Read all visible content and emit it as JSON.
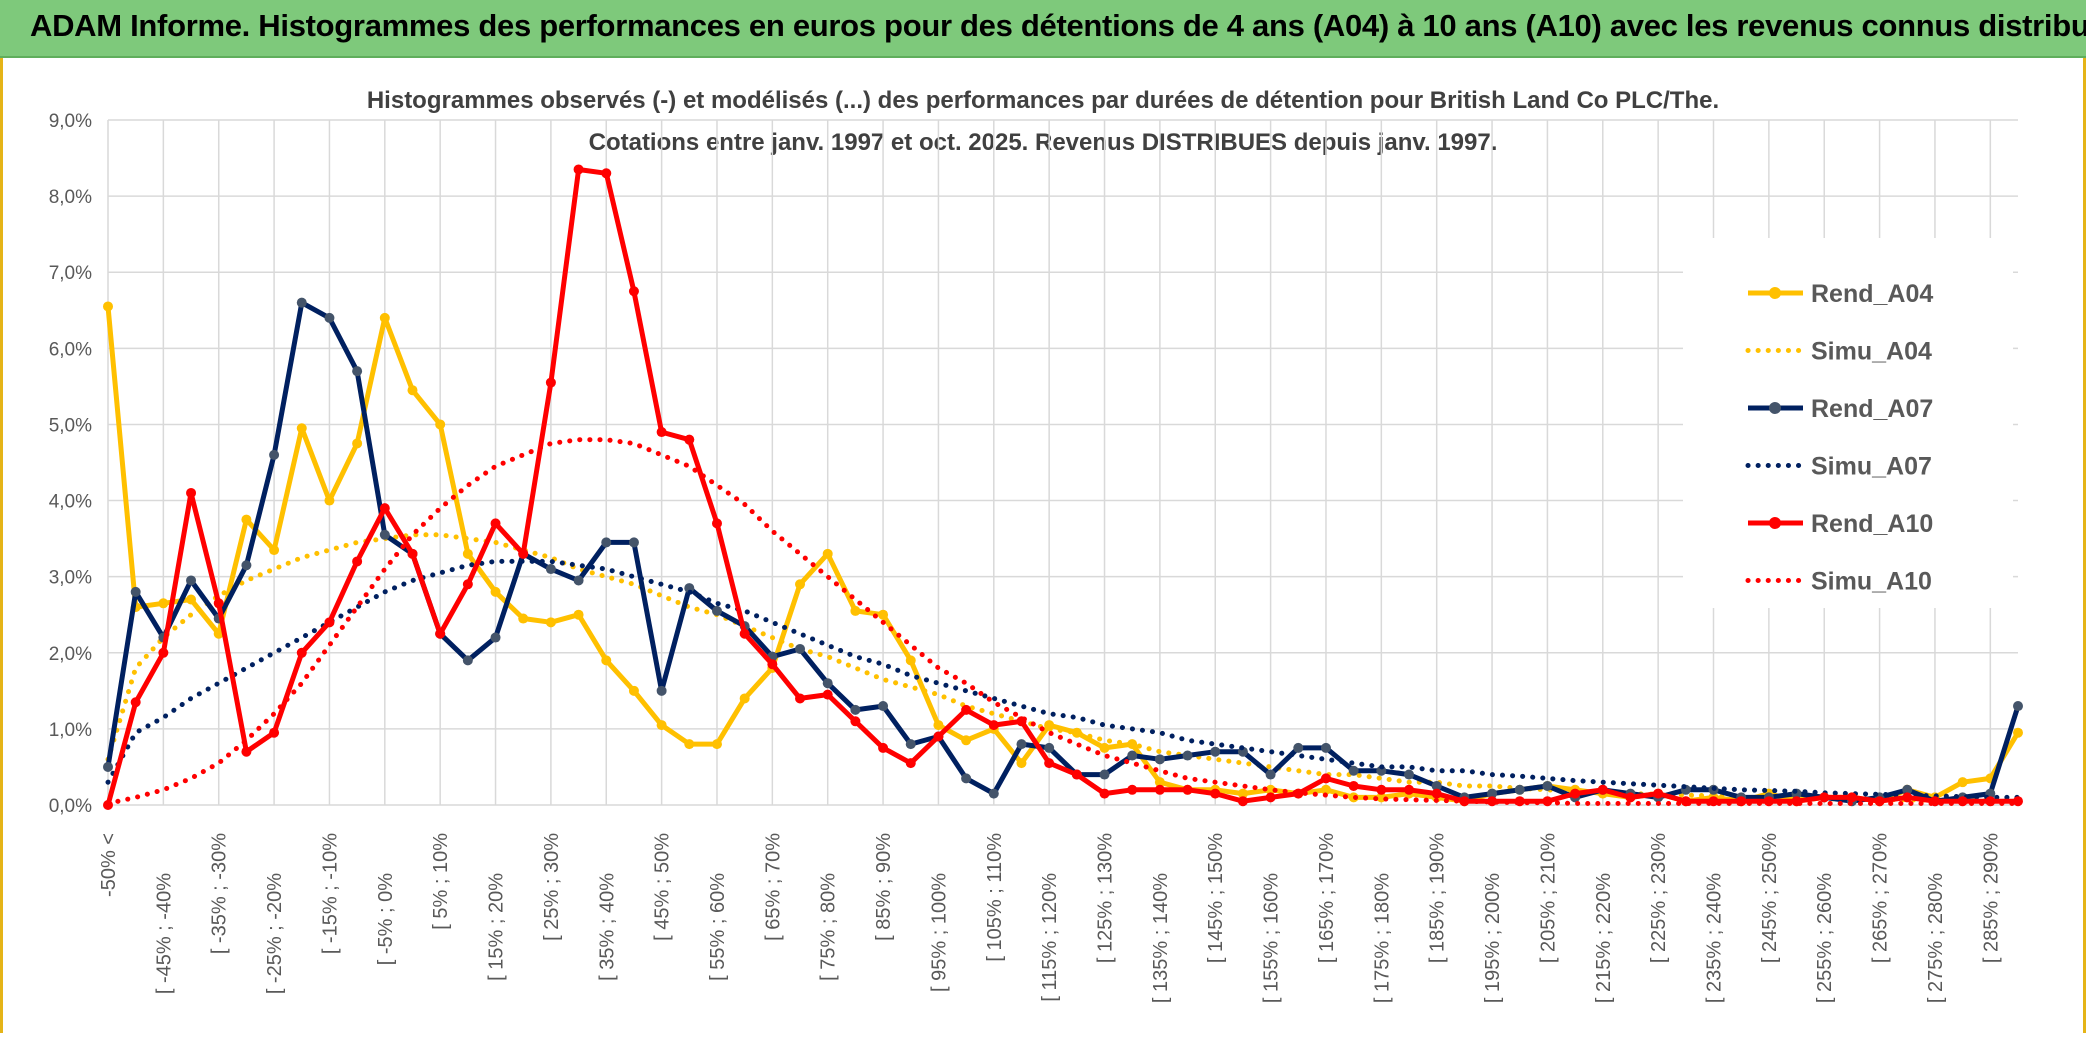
{
  "page_title": "ADAM Informe. Histogrammes des performances en euros pour des détentions de 4 ans (A04) à 10 ans (A10) avec les revenus connus distribués",
  "colors": {
    "header_bg": "#7ec97b",
    "A04": "#ffc000",
    "A07": "#002060",
    "A10": "#ff0000",
    "grid": "#d9d9d9",
    "axis_text": "#595959"
  },
  "chart_data": {
    "type": "line",
    "title_line1": "Histogrammes observés (-) et modélisés (...) des performances par durées de détention pour British Land Co PLC/The.",
    "title_line2": "Cotations entre janv. 1997 et oct. 2025. Revenus DISTRIBUES depuis janv. 1997.",
    "ylim": [
      0,
      9
    ],
    "yticks": [
      "0,0%",
      "1,0%",
      "2,0%",
      "3,0%",
      "4,0%",
      "5,0%",
      "6,0%",
      "7,0%",
      "8,0%",
      "9,0%"
    ],
    "xticks": [
      "-50% <",
      "[ -45% ; -40%",
      "[ -35% ; -30%",
      "[ -25% ; -20%",
      "[ -15% ; -10%",
      "[ -5% ; 0%",
      "[ 5% ; 10%",
      "[ 15% ; 20%",
      "[ 25% ; 30%",
      "[ 35% ; 40%",
      "[ 45% ; 50%",
      "[ 55% ; 60%",
      "[ 65% ; 70%",
      "[ 75% ; 80%",
      "[ 85% ; 90%",
      "[ 95% ; 100%",
      "[ 105% ; 110%",
      "[ 115% ; 120%",
      "[ 125% ; 130%",
      "[ 135% ; 140%",
      "[ 145% ; 150%",
      "[ 155% ; 160%",
      "[ 165% ; 170%",
      "[ 175% ; 180%",
      "[ 185% ; 190%",
      "[ 195% ; 200%",
      "[ 205% ; 210%",
      "[ 215% ; 220%",
      "[ 225% ; 230%",
      "[ 235% ; 240%",
      "[ 245% ; 250%",
      "[ 255% ; 260%",
      "[ 265% ; 270%",
      "[ 275% ; 280%",
      "[ 285% ; 290%"
    ],
    "n_points": 70,
    "series": [
      {
        "name": "Rend_A04",
        "key": "A04",
        "style": "solid",
        "values": [
          6.55,
          2.6,
          2.65,
          2.7,
          2.25,
          3.75,
          3.35,
          4.95,
          4.0,
          4.75,
          6.4,
          5.45,
          5.0,
          3.3,
          2.8,
          2.45,
          2.4,
          2.5,
          1.9,
          1.5,
          1.05,
          0.8,
          0.8,
          1.4,
          1.8,
          2.9,
          3.3,
          2.55,
          2.5,
          1.9,
          1.05,
          0.85,
          1.0,
          0.55,
          1.05,
          0.95,
          0.75,
          0.8,
          0.3,
          0.2,
          0.2,
          0.15,
          0.2,
          0.15,
          0.2,
          0.1,
          0.1,
          0.15,
          0.1,
          0.05,
          0.15,
          0.2,
          0.25,
          0.2,
          0.15,
          0.1,
          0.15,
          0.05,
          0.1,
          0.05,
          0.15,
          0.05,
          0.1,
          0.1,
          0.05,
          0.2,
          0.1,
          0.3,
          0.35,
          0.95
        ]
      },
      {
        "name": "Simu_A04",
        "key": "A04",
        "style": "dotted",
        "values": [
          0.6,
          1.8,
          2.2,
          2.5,
          2.75,
          2.95,
          3.1,
          3.25,
          3.35,
          3.45,
          3.5,
          3.55,
          3.55,
          3.5,
          3.45,
          3.35,
          3.25,
          3.1,
          3.0,
          2.9,
          2.75,
          2.6,
          2.5,
          2.35,
          2.2,
          2.05,
          1.95,
          1.8,
          1.65,
          1.55,
          1.45,
          1.3,
          1.2,
          1.1,
          1.0,
          0.95,
          0.85,
          0.8,
          0.7,
          0.65,
          0.6,
          0.55,
          0.5,
          0.45,
          0.4,
          0.4,
          0.35,
          0.3,
          0.3,
          0.25,
          0.25,
          0.22,
          0.2,
          0.18,
          0.17,
          0.15,
          0.14,
          0.13,
          0.12,
          0.1,
          0.1,
          0.09,
          0.08,
          0.08,
          0.07,
          0.07,
          0.06,
          0.06,
          0.05,
          0.05
        ]
      },
      {
        "name": "Rend_A07",
        "key": "A07",
        "style": "solid",
        "values": [
          0.5,
          2.8,
          2.2,
          2.95,
          2.45,
          3.15,
          4.6,
          6.6,
          6.4,
          5.7,
          3.55,
          3.3,
          2.25,
          1.9,
          2.2,
          3.3,
          3.1,
          2.95,
          3.45,
          3.45,
          1.5,
          2.85,
          2.55,
          2.35,
          1.95,
          2.05,
          1.6,
          1.25,
          1.3,
          0.8,
          0.9,
          0.35,
          0.15,
          0.8,
          0.75,
          0.4,
          0.4,
          0.65,
          0.6,
          0.65,
          0.7,
          0.7,
          0.4,
          0.75,
          0.75,
          0.45,
          0.45,
          0.4,
          0.25,
          0.1,
          0.15,
          0.2,
          0.25,
          0.1,
          0.2,
          0.15,
          0.1,
          0.2,
          0.2,
          0.1,
          0.1,
          0.15,
          0.1,
          0.05,
          0.1,
          0.2,
          0.05,
          0.1,
          0.15,
          1.3
        ]
      },
      {
        "name": "Simu_A07",
        "key": "A07",
        "style": "dotted",
        "values": [
          0.3,
          0.95,
          1.15,
          1.4,
          1.6,
          1.8,
          2.0,
          2.2,
          2.4,
          2.6,
          2.8,
          2.95,
          3.05,
          3.15,
          3.2,
          3.2,
          3.2,
          3.15,
          3.1,
          3.0,
          2.9,
          2.8,
          2.65,
          2.55,
          2.4,
          2.25,
          2.1,
          1.95,
          1.85,
          1.7,
          1.6,
          1.5,
          1.4,
          1.3,
          1.2,
          1.15,
          1.05,
          1.0,
          0.95,
          0.85,
          0.8,
          0.75,
          0.7,
          0.65,
          0.6,
          0.55,
          0.5,
          0.5,
          0.45,
          0.45,
          0.4,
          0.38,
          0.35,
          0.32,
          0.3,
          0.28,
          0.26,
          0.24,
          0.22,
          0.2,
          0.19,
          0.18,
          0.16,
          0.15,
          0.14,
          0.13,
          0.12,
          0.11,
          0.1,
          0.1
        ]
      },
      {
        "name": "Rend_A10",
        "key": "A10",
        "style": "solid",
        "values": [
          0.0,
          1.35,
          2.0,
          4.1,
          2.65,
          0.7,
          0.95,
          2.0,
          2.4,
          3.2,
          3.9,
          3.3,
          2.25,
          2.9,
          3.7,
          3.3,
          5.55,
          8.35,
          8.3,
          6.75,
          4.9,
          4.8,
          3.7,
          2.25,
          1.85,
          1.4,
          1.45,
          1.1,
          0.75,
          0.55,
          0.9,
          1.25,
          1.05,
          1.1,
          0.55,
          0.4,
          0.15,
          0.2,
          0.2,
          0.2,
          0.15,
          0.05,
          0.1,
          0.15,
          0.35,
          0.25,
          0.2,
          0.2,
          0.15,
          0.05,
          0.05,
          0.05,
          0.05,
          0.15,
          0.2,
          0.1,
          0.15,
          0.05,
          0.05,
          0.05,
          0.05,
          0.05,
          0.1,
          0.1,
          0.05,
          0.1,
          0.05,
          0.05,
          0.05,
          0.05
        ]
      },
      {
        "name": "Simu_A10",
        "key": "A10",
        "style": "dotted",
        "values": [
          0.02,
          0.1,
          0.2,
          0.35,
          0.55,
          0.85,
          1.2,
          1.6,
          2.1,
          2.6,
          3.1,
          3.55,
          3.9,
          4.2,
          4.45,
          4.6,
          4.75,
          4.8,
          4.8,
          4.75,
          4.6,
          4.45,
          4.2,
          3.95,
          3.6,
          3.3,
          3.0,
          2.7,
          2.4,
          2.1,
          1.8,
          1.6,
          1.35,
          1.15,
          0.95,
          0.8,
          0.65,
          0.55,
          0.45,
          0.35,
          0.3,
          0.25,
          0.2,
          0.16,
          0.13,
          0.1,
          0.08,
          0.07,
          0.06,
          0.05,
          0.04,
          0.03,
          0.03,
          0.02,
          0.02,
          0.02,
          0.02,
          0.02,
          0.02,
          0.02,
          0.02,
          0.02,
          0.02,
          0.02,
          0.02,
          0.02,
          0.02,
          0.02,
          0.02,
          0.02
        ]
      }
    ],
    "legend_position": "right"
  }
}
